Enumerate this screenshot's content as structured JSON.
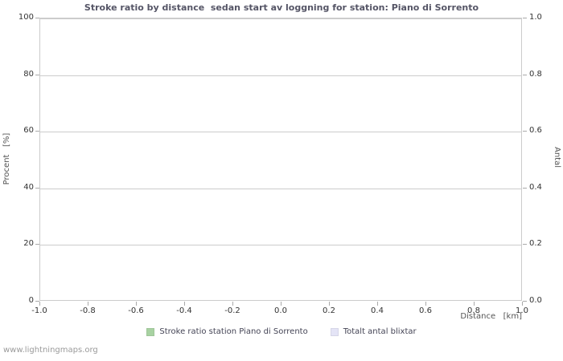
{
  "watermark": "www.lightningmaps.org",
  "colors": {
    "grid": "#cccccc",
    "tick": "#aaaaaa",
    "plot_border": "#cccccc"
  },
  "chart_data": {
    "type": "line",
    "title": "Stroke ratio by distance  sedan start av loggning for station: Piano di Sorrento",
    "xlabel": "Distance   [km]",
    "ylabel_left": "Procent   [%]",
    "ylabel_right": "Antal",
    "xlim": [
      -1.0,
      1.0
    ],
    "x_ticks": {
      "values": [
        -1.0,
        -0.8,
        -0.6,
        -0.4,
        -0.2,
        0.0,
        0.2,
        0.4,
        0.6,
        0.8,
        1.0
      ],
      "labels": [
        "-1.0",
        "-0.8",
        "-0.6",
        "-0.4",
        "-0.2",
        "0.0",
        "0.2",
        "0.4",
        "0.6",
        "0.8",
        "1.0"
      ]
    },
    "y_left": {
      "lim": [
        0,
        100
      ],
      "values": [
        0,
        20,
        40,
        60,
        80,
        100
      ],
      "labels": [
        "0",
        "20",
        "40",
        "60",
        "80",
        "100"
      ]
    },
    "y_right": {
      "lim": [
        0.0,
        1.0
      ],
      "values": [
        0.0,
        0.2,
        0.4,
        0.6,
        0.8,
        1.0
      ],
      "labels": [
        "0.0",
        "0.2",
        "0.4",
        "0.6",
        "0.8",
        "1.0"
      ]
    },
    "grid": true,
    "legend_position": "bottom",
    "series": [
      {
        "name": "Stroke ratio station Piano di Sorrento",
        "color": "#a8d2a2",
        "points": []
      },
      {
        "name": "Totalt antal blixtar",
        "color": "#e4e4f6",
        "points": []
      }
    ]
  }
}
